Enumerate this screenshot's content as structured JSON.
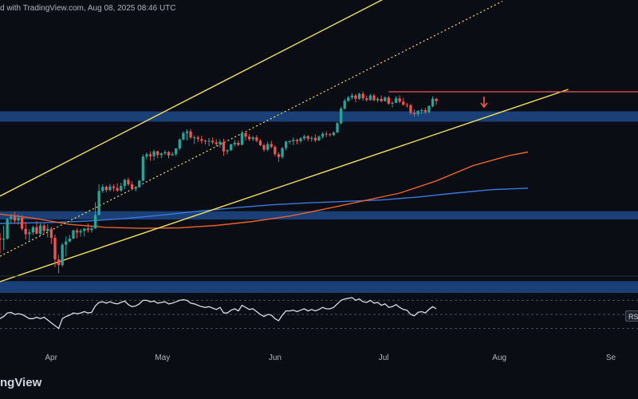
{
  "header": {
    "caption": "d with TradingView.com, Aug 08, 2025 08:46 UTC"
  },
  "footer": {
    "brand": "ngView"
  },
  "rsi_label": "RSI",
  "colors": {
    "background": "#0b0d14",
    "bull": "#26a69a",
    "bear": "#ef5350",
    "channel": "#f2e25c",
    "zone": "#1f4a8a",
    "ema_short": "#e8632c",
    "ema_long": "#3a78e0",
    "resistance": "#f25a5a",
    "rsi_line": "#d8dde8"
  },
  "chart_data": {
    "type": "candlestick",
    "title": "",
    "xlabel": "",
    "ylabel": "",
    "x_tick_labels": [
      "Apr",
      "May",
      "Jun",
      "Jul",
      "Aug",
      "Se"
    ],
    "x_tick_days": [
      0,
      30,
      61,
      91,
      122,
      153
    ],
    "visible_day_range": [
      -14,
      160
    ],
    "price_range": [
      77,
      130
    ],
    "candles_start_day": -14,
    "candles_ohlc": [
      [
        84.59,
        85.66,
        81.5,
        84.29
      ],
      [
        84.29,
        87.17,
        82.17,
        84.5
      ],
      [
        84.5,
        88.75,
        84.25,
        88.5
      ],
      [
        88.5,
        89.58,
        87.75,
        89
      ],
      [
        89,
        89.91,
        87.58,
        88.17
      ],
      [
        88.17,
        89.42,
        87.33,
        88.75
      ],
      [
        88.75,
        89.33,
        86.17,
        86.5
      ],
      [
        86.5,
        87.92,
        84.33,
        85.41
      ],
      [
        85.41,
        86.41,
        84.08,
        85.75
      ],
      [
        85.75,
        87.17,
        85.25,
        86.83
      ],
      [
        86.83,
        88.08,
        85.41,
        85.5
      ],
      [
        85.5,
        87.58,
        85.17,
        87.17
      ],
      [
        87.17,
        87.58,
        85.41,
        86.08
      ],
      [
        86.08,
        87.42,
        84.75,
        86.5
      ],
      [
        86.5,
        86.91,
        83.41,
        84.66
      ],
      [
        84.66,
        85.33,
        78.67,
        80.25
      ],
      [
        80.25,
        81.17,
        77.42,
        79.08
      ],
      [
        79.08,
        83.66,
        78.75,
        83.25
      ],
      [
        83.25,
        84.92,
        80.83,
        83.91
      ],
      [
        83.91,
        85.25,
        83.75,
        84.5
      ],
      [
        84.5,
        86.33,
        84.42,
        86.17
      ],
      [
        86.17,
        86.58,
        84.58,
        85.75
      ],
      [
        85.75,
        86.5,
        84.92,
        86.08
      ],
      [
        86.08,
        86.5,
        84.92,
        86.58
      ],
      [
        86.58,
        87.58,
        85.75,
        86.25
      ],
      [
        86.25,
        87.08,
        85.75,
        86.58
      ],
      [
        86.58,
        91.92,
        86.5,
        89.33
      ],
      [
        89.33,
        95.58,
        89.25,
        94.25
      ],
      [
        94.25,
        95.58,
        93.83,
        95.08
      ],
      [
        95.08,
        95.41,
        93.92,
        94.41
      ],
      [
        94.41,
        95.66,
        94.17,
        95.17
      ],
      [
        95.17,
        95.58,
        94.17,
        94.83
      ],
      [
        94.83,
        95.83,
        94.08,
        94.33
      ],
      [
        94.33,
        95.91,
        94.08,
        95.25
      ],
      [
        95.25,
        96.75,
        94.58,
        96.5
      ],
      [
        96.5,
        97,
        95.25,
        95.58
      ],
      [
        95.58,
        96.25,
        94.33,
        94.67
      ],
      [
        94.67,
        95.25,
        94.17,
        95
      ],
      [
        95,
        96.5,
        94.92,
        96.33
      ],
      [
        96.33,
        101.75,
        96.17,
        101.25
      ],
      [
        101.25,
        102.08,
        100.67,
        101.75
      ],
      [
        101.75,
        102.33,
        100.42,
        101.33
      ],
      [
        101.33,
        102.67,
        100.5,
        102.33
      ],
      [
        102.33,
        102.5,
        100.92,
        101.58
      ],
      [
        101.58,
        102.08,
        100.92,
        101.92
      ],
      [
        101.92,
        102.58,
        101.58,
        102.17
      ],
      [
        102.17,
        102.42,
        100.92,
        101.5
      ],
      [
        101.5,
        102.25,
        101.42,
        101.75
      ],
      [
        101.75,
        103,
        101.33,
        102.92
      ],
      [
        102.92,
        105,
        102.58,
        104.75
      ],
      [
        104.75,
        106.41,
        104.58,
        106.08
      ],
      [
        106.08,
        106.83,
        104.58,
        106.41
      ],
      [
        106.41,
        106.91,
        104.83,
        105.17
      ],
      [
        105.17,
        105.58,
        103.83,
        105.17
      ],
      [
        105.17,
        105.58,
        104.25,
        104.83
      ],
      [
        104.83,
        105.5,
        103.92,
        104.5
      ],
      [
        104.5,
        104.75,
        103.75,
        104.33
      ],
      [
        104.33,
        105.08,
        103.41,
        104.5
      ],
      [
        104.5,
        105.17,
        103.75,
        104.17
      ],
      [
        104.17,
        104.83,
        103.33,
        103.83
      ],
      [
        103.83,
        104.75,
        103.08,
        104.25
      ],
      [
        104.25,
        104.92,
        101.42,
        102.33
      ],
      [
        102.33,
        102.75,
        101.75,
        102.58
      ],
      [
        102.58,
        103.92,
        102.41,
        103.75
      ],
      [
        103.75,
        104.66,
        103.33,
        104.08
      ],
      [
        104.08,
        104.58,
        103.41,
        103.66
      ],
      [
        103.66,
        106.58,
        103.58,
        106.08
      ],
      [
        106.08,
        106.5,
        104.58,
        105.33
      ],
      [
        105.33,
        105.83,
        104.42,
        104.83
      ],
      [
        104.83,
        105.5,
        104.42,
        105.17
      ],
      [
        105.17,
        105.66,
        104.17,
        104.5
      ],
      [
        104.5,
        104.83,
        103.42,
        103.58
      ],
      [
        103.58,
        103.91,
        102.25,
        102.67
      ],
      [
        102.67,
        104.33,
        102.33,
        103.83
      ],
      [
        103.83,
        104.5,
        102.92,
        103.25
      ],
      [
        103.25,
        103.58,
        101.33,
        101.75
      ],
      [
        101.75,
        102.17,
        100.17,
        101.17
      ],
      [
        101.17,
        103.25,
        100.83,
        103
      ],
      [
        103,
        104.5,
        102.5,
        104.33
      ],
      [
        104.33,
        104.58,
        103.83,
        104.41
      ],
      [
        104.41,
        105.17,
        103.58,
        104.67
      ],
      [
        104.67,
        104.92,
        103.75,
        104.42
      ],
      [
        104.42,
        105.25,
        104,
        105
      ],
      [
        105,
        105.75,
        104.58,
        105.41
      ],
      [
        105.41,
        105.66,
        104.42,
        104.92
      ],
      [
        104.92,
        105.41,
        104.33,
        105.08
      ],
      [
        105.08,
        105.83,
        104.17,
        104.58
      ],
      [
        104.58,
        105.58,
        104.42,
        105.33
      ],
      [
        105.33,
        106.25,
        104.92,
        105.92
      ],
      [
        105.92,
        106.41,
        105.25,
        105.83
      ],
      [
        105.83,
        106.08,
        105.33,
        105.67
      ],
      [
        105.67,
        106.41,
        105.5,
        106.17
      ],
      [
        106.17,
        108.33,
        106.08,
        108.08
      ],
      [
        108.08,
        111.5,
        107.83,
        111.08
      ],
      [
        111.08,
        113.08,
        110.83,
        112.67
      ],
      [
        112.67,
        113.67,
        112.41,
        113.33
      ],
      [
        113.33,
        114.25,
        112.83,
        113.75
      ],
      [
        113.75,
        114.08,
        112.33,
        113.08
      ],
      [
        113.08,
        114.33,
        112.83,
        114.08
      ],
      [
        114.08,
        114.58,
        112.67,
        113.17
      ],
      [
        113.17,
        113.75,
        112.5,
        112.83
      ],
      [
        112.83,
        114.08,
        112.67,
        113.75
      ],
      [
        113.75,
        114.08,
        112.58,
        112.75
      ],
      [
        112.75,
        113.42,
        112.33,
        113.08
      ],
      [
        113.08,
        113.75,
        112.42,
        112.58
      ],
      [
        112.58,
        113.58,
        112.5,
        113.33
      ],
      [
        113.33,
        113.66,
        111.83,
        112.08
      ],
      [
        112.08,
        112.58,
        111.33,
        112.25
      ],
      [
        112.25,
        113.58,
        112.17,
        113.17
      ],
      [
        113.17,
        113.75,
        112.17,
        112.5
      ],
      [
        112.5,
        113.25,
        111.67,
        111.83
      ],
      [
        111.83,
        112.25,
        111.25,
        111.75
      ],
      [
        111.75,
        112.08,
        109.75,
        110.17
      ],
      [
        110.17,
        110.92,
        109.42,
        109.92
      ],
      [
        109.92,
        110.75,
        109.5,
        110.58
      ],
      [
        110.58,
        111.08,
        109.92,
        110.75
      ],
      [
        110.75,
        111.25,
        109.92,
        110.33
      ],
      [
        110.33,
        111.75,
        110.08,
        111.58
      ],
      [
        111.58,
        113.58,
        111.33,
        113.08
      ],
      [
        113.08,
        113.25,
        111.83,
        112.58
      ]
    ],
    "ema_short": {
      "days": [
        -14,
        -5,
        5,
        15,
        25,
        35,
        45,
        55,
        65,
        75,
        85,
        95,
        105,
        115,
        125,
        130
      ],
      "values": [
        89.5,
        88.7,
        87.4,
        86.8,
        86.6,
        86.7,
        87.2,
        88,
        89.1,
        90.6,
        92.2,
        93.8,
        96.3,
        99.4,
        101.5,
        102.2
      ]
    },
    "ema_long": {
      "days": [
        -14,
        0,
        10,
        20,
        30,
        40,
        50,
        60,
        70,
        80,
        90,
        100,
        110,
        120,
        130
      ],
      "values": [
        87.6,
        87.8,
        88.1,
        88.6,
        89.3,
        90.1,
        90.8,
        91.4,
        91.8,
        92.1,
        92.4,
        93,
        93.8,
        94.5,
        94.8
      ]
    },
    "channel_upper": {
      "days": [
        -14,
        92
      ],
      "values": [
        93.2,
        134
      ]
    },
    "channel_lower": {
      "days": [
        -14,
        141
      ],
      "values": [
        75.7,
        115
      ]
    },
    "channel_mid": {
      "days": [
        -14,
        123
      ],
      "values": [
        80.9,
        133
      ]
    },
    "resistance": {
      "days": [
        92,
        160
      ],
      "values": [
        114.5,
        114.5
      ]
    },
    "zones": [
      [
        108.4,
        110.5
      ],
      [
        88.4,
        90.1
      ],
      [
        73.4,
        75.8
      ]
    ],
    "signal_arrow_day": 118,
    "rsi": {
      "range": [
        0,
        100
      ],
      "levels": [
        70,
        50,
        30
      ],
      "start_day": -14,
      "values": [
        44,
        47,
        52,
        53,
        50,
        51,
        50,
        47,
        44,
        44,
        46,
        44,
        46,
        42,
        38,
        34,
        30,
        44,
        47,
        49,
        52,
        51,
        52,
        54,
        52,
        53,
        62,
        67,
        68,
        66,
        68,
        66,
        65,
        67,
        69,
        64,
        61,
        62,
        65,
        70,
        70,
        68,
        69,
        66,
        67,
        68,
        65,
        66,
        68,
        70,
        71,
        70,
        66,
        65,
        63,
        61,
        60,
        61,
        59,
        57,
        60,
        52,
        52,
        56,
        58,
        55,
        63,
        60,
        57,
        58,
        54,
        50,
        47,
        50,
        49,
        44,
        41,
        49,
        55,
        55,
        56,
        54,
        56,
        58,
        55,
        57,
        55,
        57,
        60,
        58,
        58,
        60,
        65,
        70,
        72,
        73,
        74,
        70,
        72,
        68,
        67,
        70,
        66,
        67,
        63,
        65,
        60,
        61,
        64,
        60,
        57,
        56,
        50,
        48,
        53,
        54,
        52,
        57,
        61,
        58
      ]
    }
  }
}
